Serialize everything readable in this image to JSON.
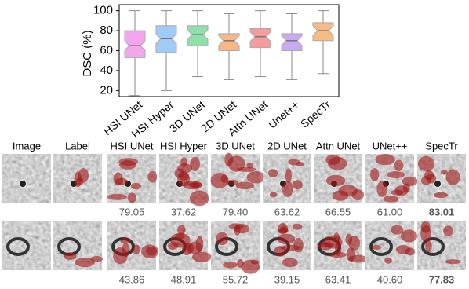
{
  "chart_data": {
    "type": "box",
    "y_label": "DSC (%)",
    "categories": [
      "HSI UNet",
      "HSI Hyper",
      "3D UNet",
      "2D UNet",
      "Attn UNet",
      "Unet++",
      "SpecTr"
    ],
    "values": [
      {
        "low": 15,
        "q1": 53,
        "median": 65,
        "q3": 80,
        "high": 100
      },
      {
        "low": 20,
        "q1": 58,
        "median": 72,
        "q3": 85,
        "high": 100
      },
      {
        "low": 34,
        "q1": 65,
        "median": 76,
        "q3": 85,
        "high": 100
      },
      {
        "low": 31,
        "q1": 60,
        "median": 70,
        "q3": 77,
        "high": 97
      },
      {
        "low": 34,
        "q1": 63,
        "median": 74,
        "q3": 82,
        "high": 100
      },
      {
        "low": 31,
        "q1": 60,
        "median": 70,
        "q3": 77,
        "high": 97
      },
      {
        "low": 37,
        "q1": 70,
        "median": 80,
        "q3": 88,
        "high": 100
      }
    ],
    "colors": [
      "#f4a6ec",
      "#9fcbf6",
      "#8fe0aa",
      "#f7b886",
      "#f59c9c",
      "#c9aaf2",
      "#f7bb86"
    ],
    "ylim": [
      14,
      106
    ],
    "yticks": [
      20,
      40,
      60,
      80,
      100
    ]
  },
  "image_grid": {
    "headers": [
      "Image",
      "Label",
      "HSI UNet",
      "HSI Hyper",
      "3D UNet",
      "2D UNet",
      "Attn UNet",
      "UNet++",
      "SpecTr"
    ],
    "rows": [
      {
        "scores": [
          "79.05",
          "37.62",
          "79.40",
          "63.62",
          "66.55",
          "61.00",
          "83.01"
        ]
      },
      {
        "scores": [
          "43.86",
          "48.91",
          "55.72",
          "39.15",
          "63.41",
          "40.60",
          "77.83"
        ]
      }
    ]
  }
}
